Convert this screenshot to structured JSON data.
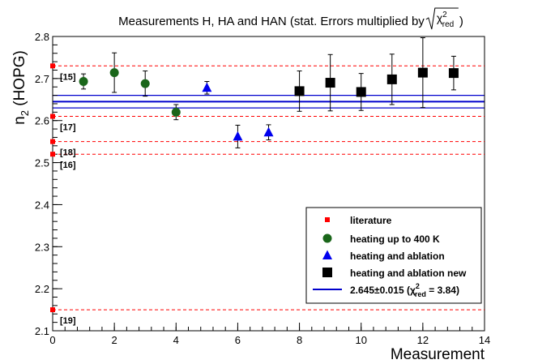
{
  "chart_data": {
    "type": "scatter",
    "title": "Measurements H, HA and HAN (stat. Errors multiplied by",
    "title_sqrt": {
      "symbol": "χ",
      "sup": "2",
      "sub": "red"
    },
    "xlabel": "Measurement",
    "ylabel": "n",
    "ylabel_sub": "2",
    "ylabel_suffix": " (HOPG)",
    "xlim": [
      0,
      14
    ],
    "ylim": [
      2.1,
      2.8
    ],
    "xticks": [
      0,
      2,
      4,
      6,
      8,
      10,
      12,
      14
    ],
    "yticks": [
      2.1,
      2.2,
      2.3,
      2.4,
      2.5,
      2.6,
      2.7,
      2.8
    ],
    "ytick_labels": [
      "2.1",
      "2.2",
      "2.3",
      "2.4",
      "2.5",
      "2.6",
      "2.7",
      "2.8"
    ],
    "literature": [
      {
        "label": "[15]",
        "value": 2.73
      },
      {
        "label": "[17]",
        "value": 2.61
      },
      {
        "label": "[18]",
        "value": 2.55
      },
      {
        "label": "[16]",
        "value": 2.52
      },
      {
        "label": "[19]",
        "value": 2.15
      }
    ],
    "series": [
      {
        "name": "heating up to 400 K",
        "marker": "circle",
        "color": "#1a661a",
        "points": [
          {
            "x": 1,
            "y": 2.693,
            "err": 0.018
          },
          {
            "x": 2,
            "y": 2.714,
            "err": 0.047
          },
          {
            "x": 3,
            "y": 2.688,
            "err": 0.03
          },
          {
            "x": 4,
            "y": 2.62,
            "err": 0.018
          }
        ]
      },
      {
        "name": "heating and ablation",
        "marker": "triangle",
        "color": "#0000ee",
        "points": [
          {
            "x": 5,
            "y": 2.678,
            "err": 0.015
          },
          {
            "x": 6,
            "y": 2.562,
            "err": 0.027
          },
          {
            "x": 7,
            "y": 2.572,
            "err": 0.018
          }
        ]
      },
      {
        "name": "heating and ablation new",
        "marker": "square",
        "color": "#000000",
        "points": [
          {
            "x": 8,
            "y": 2.67,
            "err": 0.048
          },
          {
            "x": 9,
            "y": 2.69,
            "err": 0.067
          },
          {
            "x": 10,
            "y": 2.668,
            "err": 0.044
          },
          {
            "x": 11,
            "y": 2.698,
            "err": 0.06
          },
          {
            "x": 12,
            "y": 2.714,
            "err": 0.083
          },
          {
            "x": 13,
            "y": 2.713,
            "err": 0.04
          }
        ]
      }
    ],
    "fit": {
      "value": 2.645,
      "error": 0.015,
      "chi2": 3.84
    },
    "legend": {
      "position": "bottom-right",
      "literature": "literature",
      "fit_label": "2.645±0.015 (χ",
      "fit_sup": "2",
      "fit_sub": "red",
      "fit_suffix": " = 3.84)"
    },
    "colors": {
      "literature": "#ff0000",
      "fit": "#0000cc"
    }
  }
}
